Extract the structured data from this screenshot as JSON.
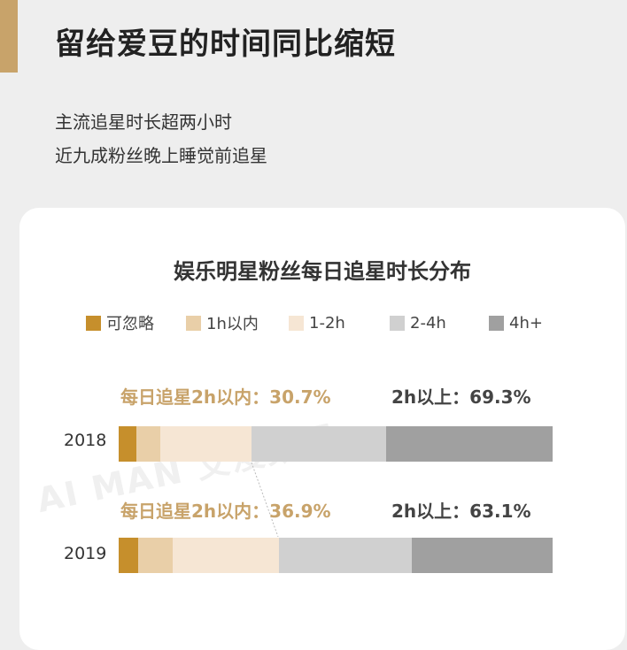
{
  "header": {
    "title": "留给爱豆的时间同比缩短",
    "subtitle_lines": [
      "主流追星时长超两小时",
      "近九成粉丝晚上睡觉前追星"
    ]
  },
  "colors": {
    "accent": "#c8a36a",
    "negligible": "#c68f2c",
    "under_1h": "#e9cfa8",
    "h1_2": "#f6e6d4",
    "h2_4": "#d0d0d0",
    "h4_plus": "#a0a0a0"
  },
  "watermark": "AI MAN 艾漫数据",
  "chart_data": {
    "type": "bar",
    "orientation": "horizontal",
    "stacked": true,
    "normalized": true,
    "title": "娱乐明星粉丝每日追星时长分布",
    "categories": [
      "2018",
      "2019"
    ],
    "series": [
      {
        "name": "可忽略",
        "values": [
          4.0,
          4.5
        ]
      },
      {
        "name": "1h以内",
        "values": [
          5.5,
          8.0
        ]
      },
      {
        "name": "1-2h",
        "values": [
          21.2,
          24.4
        ]
      },
      {
        "name": "2-4h",
        "values": [
          31.0,
          30.6
        ]
      },
      {
        "name": "4h+",
        "values": [
          38.3,
          32.5
        ]
      }
    ],
    "summaries": [
      {
        "within_2h_label": "每日追星2h以内：30.7%",
        "over_2h_label": "2h以上：69.3%"
      },
      {
        "within_2h_label": "每日追星2h以内：36.9%",
        "over_2h_label": "2h以上：63.1%"
      }
    ],
    "legend_position": "top"
  }
}
